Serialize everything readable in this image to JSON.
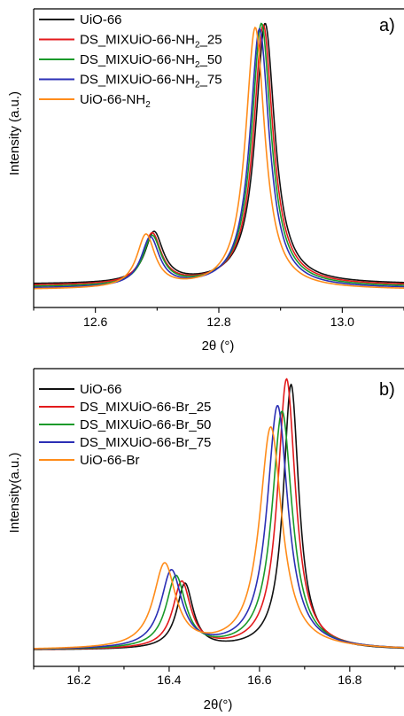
{
  "chart_data": [
    {
      "type": "line",
      "panel_label": "a)",
      "xlabel": "2θ (°)",
      "ylabel": "Intensity (a.u.)",
      "xlim": [
        12.5,
        13.1
      ],
      "ylim": [
        0,
        1.1
      ],
      "xticks": [
        "12.6",
        "12.8",
        "13.0"
      ],
      "xtick_values": [
        12.6,
        12.8,
        13.0
      ],
      "legend_position": "top-left",
      "series": [
        {
          "name": "UiO-66",
          "sub": "",
          "suffix": "",
          "color": "#111111",
          "base": 0.085,
          "peaks": [
            [
              12.695,
              0.185,
              0.018
            ],
            [
              12.875,
              0.96,
              0.019
            ]
          ]
        },
        {
          "name": "DS_MIXUiO-66-NH",
          "sub": "2",
          "suffix": "_25",
          "color": "#e31a1c",
          "base": 0.08,
          "peaks": [
            [
              12.692,
              0.185,
              0.018
            ],
            [
              12.872,
              0.96,
              0.019
            ]
          ]
        },
        {
          "name": "DS_MIXUiO-66-NH",
          "sub": "2",
          "suffix": "_50",
          "color": "#1a9a2a",
          "base": 0.075,
          "peaks": [
            [
              12.692,
              0.18,
              0.018
            ],
            [
              12.869,
              0.97,
              0.019
            ]
          ]
        },
        {
          "name": "DS_MIXUiO-66-NH",
          "sub": "2",
          "suffix": "_75",
          "color": "#2b2fb5",
          "base": 0.07,
          "peaks": [
            [
              12.689,
              0.18,
              0.018
            ],
            [
              12.866,
              0.955,
              0.019
            ]
          ]
        },
        {
          "name": "UiO-66-NH",
          "sub": "2",
          "suffix": "",
          "color": "#ff8c1a",
          "base": 0.065,
          "peaks": [
            [
              12.682,
              0.195,
              0.018
            ],
            [
              12.859,
              0.965,
              0.019
            ]
          ]
        }
      ]
    },
    {
      "type": "line",
      "panel_label": "b)",
      "xlabel": "2θ(°)",
      "ylabel": "Intensity(a.u.)",
      "xlim": [
        16.1,
        16.92
      ],
      "ylim": [
        0,
        1.1
      ],
      "xticks": [
        "16.2",
        "16.4",
        "16.6",
        "16.8"
      ],
      "xtick_values": [
        16.2,
        16.4,
        16.6,
        16.8
      ],
      "legend_position": "top-left",
      "series": [
        {
          "name": "UiO-66",
          "sub": "",
          "suffix": "",
          "color": "#111111",
          "base": 0.06,
          "peaks": [
            [
              16.435,
              0.24,
              0.022
            ],
            [
              16.67,
              0.98,
              0.021
            ]
          ]
        },
        {
          "name": "DS_MIXUiO-66-Br_25",
          "sub": "",
          "suffix": "",
          "color": "#e31a1c",
          "base": 0.06,
          "peaks": [
            [
              16.428,
              0.245,
              0.024
            ],
            [
              16.66,
              1.0,
              0.024
            ]
          ]
        },
        {
          "name": "DS_MIXUiO-66-Br_50",
          "sub": "",
          "suffix": "",
          "color": "#1a9a2a",
          "base": 0.06,
          "peaks": [
            [
              16.415,
              0.265,
              0.026
            ],
            [
              16.65,
              0.88,
              0.027
            ]
          ]
        },
        {
          "name": "DS_MIXUiO-66-Br_75",
          "sub": "",
          "suffix": "",
          "color": "#2b2fb5",
          "base": 0.06,
          "peaks": [
            [
              16.405,
              0.285,
              0.028
            ],
            [
              16.64,
              0.9,
              0.028
            ]
          ]
        },
        {
          "name": "UiO-66-Br",
          "sub": "",
          "suffix": "",
          "color": "#ff8c1a",
          "base": 0.06,
          "peaks": [
            [
              16.39,
              0.31,
              0.03
            ],
            [
              16.625,
              0.82,
              0.03
            ]
          ]
        }
      ]
    }
  ]
}
